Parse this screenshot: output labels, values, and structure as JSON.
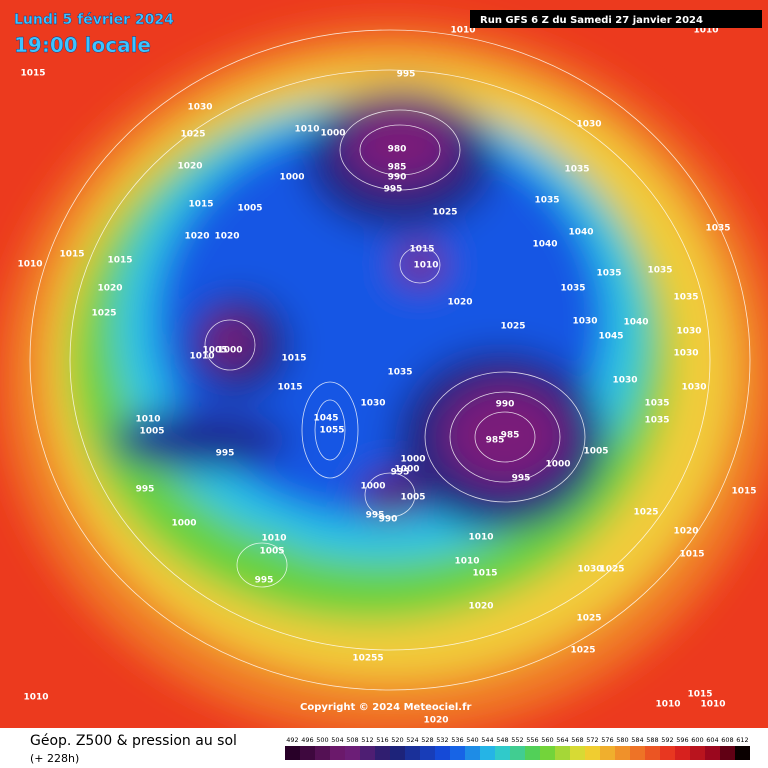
{
  "header": {
    "date": "Lundi 5 février 2024",
    "time": "19:00 locale",
    "run": "Run GFS 6 Z du Samedi 27 janvier 2024"
  },
  "footer": {
    "title": "Géop. Z500 & pression au sol",
    "lead": "(+ 228h)",
    "copyright": "Copyright © 2024 Meteociel.fr"
  },
  "colorbar": {
    "ticks": [
      492,
      496,
      500,
      504,
      508,
      512,
      516,
      520,
      524,
      528,
      532,
      536,
      540,
      544,
      548,
      552,
      556,
      560,
      564,
      568,
      572,
      576,
      580,
      584,
      588,
      592,
      596,
      600,
      604,
      608,
      612
    ]
  },
  "pressure_labels": [
    1015,
    1030,
    1025,
    1020,
    1015,
    1020,
    1020,
    1005,
    1010,
    1015,
    1015,
    1020,
    1025,
    1010,
    1005,
    1000,
    1015,
    1015,
    1010,
    1005,
    995,
    995,
    1000,
    1010,
    1005,
    995,
    995,
    1010,
    1000,
    980,
    985,
    990,
    995,
    1000,
    1025,
    1015,
    1010,
    1020,
    1025,
    1035,
    1030,
    990,
    985,
    985,
    1000,
    995,
    1005,
    1000,
    1000,
    1000,
    995,
    1005,
    995,
    990,
    1010,
    1010,
    1015,
    1020,
    1030,
    1035,
    1035,
    1040,
    1040,
    1035,
    1035,
    1035,
    1035,
    1035,
    1040,
    1030,
    1045,
    1030,
    1030,
    1030,
    1035,
    1035,
    1030,
    1015,
    1025,
    1020,
    1015,
    1030,
    1025,
    1025,
    1025,
    10255,
    1010,
    1015,
    1010,
    1010,
    1020,
    1010,
    1010,
    1045,
    1055
  ]
}
